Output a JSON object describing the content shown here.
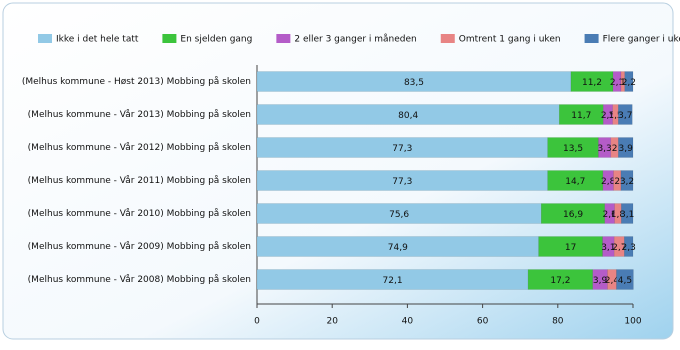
{
  "chart_data": {
    "type": "stacked_bar_horizontal",
    "categories": [
      "(Melhus kommune - Høst 2013) Mobbing på skolen",
      "(Melhus kommune - Vår 2013) Mobbing på skolen",
      "(Melhus kommune - Vår 2012) Mobbing på skolen",
      "(Melhus kommune - Vår 2011) Mobbing på skolen",
      "(Melhus kommune - Vår 2010) Mobbing på skolen",
      "(Melhus kommune - Vår 2009) Mobbing på skolen",
      "(Melhus kommune - Vår 2008) Mobbing på skolen"
    ],
    "series": [
      {
        "name": "Ikke i det hele tatt",
        "color": "#92c9e6",
        "values": [
          83.5,
          80.4,
          77.3,
          77.3,
          75.6,
          74.9,
          72.1
        ],
        "value_labels": [
          "83,5",
          "80,4",
          "77,3",
          "77,3",
          "75,6",
          "74,9",
          "72,1"
        ]
      },
      {
        "name": "En sjelden gang",
        "color": "#3cc43c",
        "values": [
          11.2,
          11.7,
          13.5,
          14.7,
          16.9,
          17,
          17.2
        ],
        "value_labels": [
          "11,2",
          "11,7",
          "13,5",
          "14,7",
          "16,9",
          "17",
          "17,2"
        ]
      },
      {
        "name": "2 eller 3 ganger i måneden",
        "color": "#b45cc8",
        "values": [
          2.1,
          2.5,
          3.3,
          2.8,
          2.6,
          3.1,
          3.9
        ],
        "value_labels": [
          "2,1",
          "2,5",
          "3,3",
          "2,8",
          "2,6",
          "3,1",
          "3,9"
        ]
      },
      {
        "name": "Omtrent 1 gang i uken",
        "color": "#e88484",
        "values": [
          1,
          1.5,
          2,
          2,
          1.8,
          2.7,
          2.4
        ],
        "value_labels": [
          "1",
          "1,5",
          "2",
          "2",
          "1,8",
          "2,7",
          "2,4"
        ]
      },
      {
        "name": "Flere ganger i uken",
        "color": "#4a7cb4",
        "values": [
          2.2,
          3.7,
          3.9,
          3.2,
          3.1,
          2.3,
          4.5
        ],
        "value_labels": [
          "2,2",
          "3,7",
          "3,9",
          "3,2",
          "3,1",
          "2,3",
          "4,5"
        ]
      }
    ],
    "xlim": [
      0,
      100
    ],
    "xticks": [
      0,
      20,
      40,
      60,
      80,
      100
    ]
  }
}
